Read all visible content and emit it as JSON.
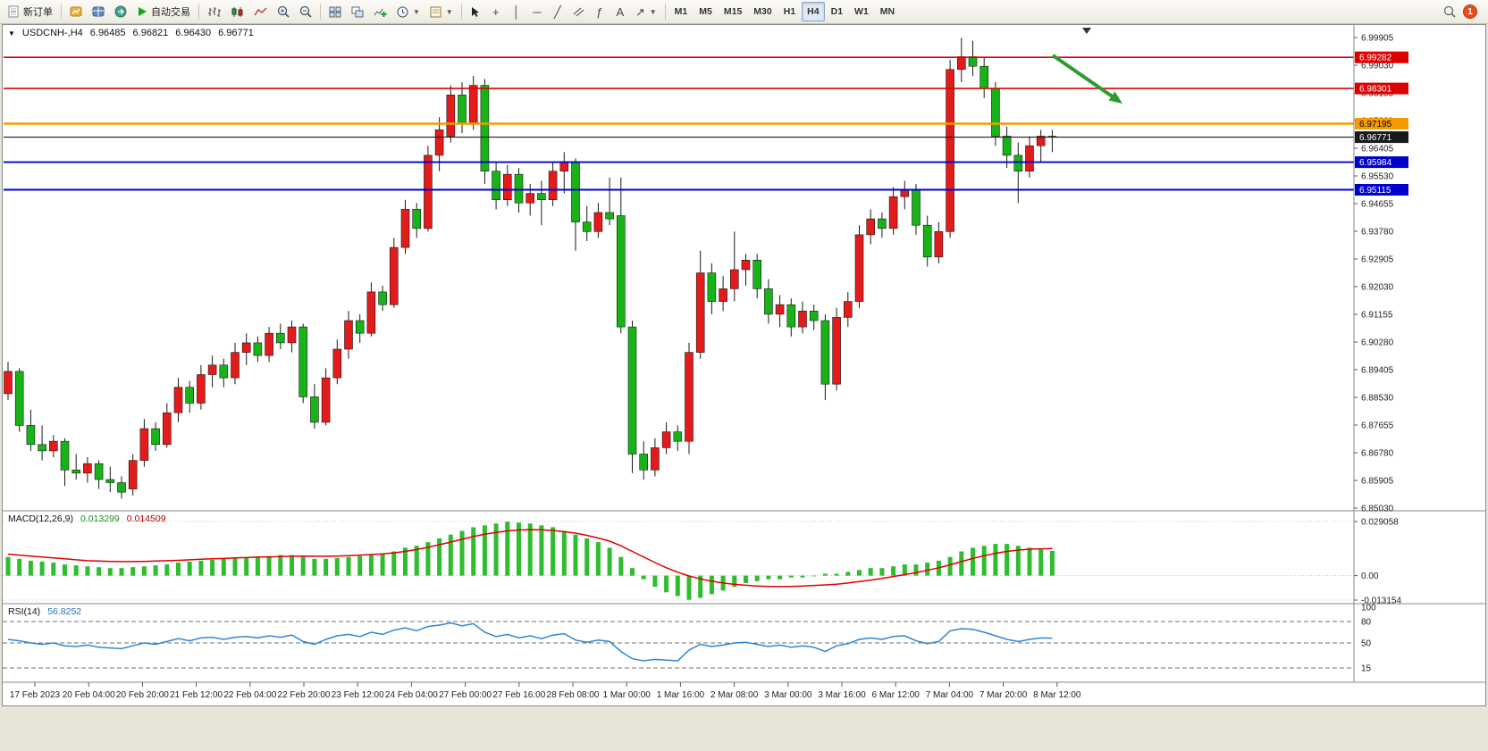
{
  "toolbar": {
    "new_order_label": "新订单",
    "autotrade_label": "自动交易",
    "timeframes": [
      "M1",
      "M5",
      "M15",
      "M30",
      "H1",
      "H4",
      "D1",
      "W1",
      "MN"
    ],
    "active_timeframe": "H4",
    "notification_badge": "1"
  },
  "chart": {
    "title_symbol": "USDCNH-,H4",
    "ohlc": {
      "open": "6.96485",
      "high": "6.96821",
      "low": "6.96430",
      "close": "6.96771"
    },
    "price_axis": [
      "6.99905",
      "6.99030",
      "6.98155",
      "6.97280",
      "6.96405",
      "6.95530",
      "6.94655",
      "6.93780",
      "6.92905",
      "6.92030",
      "6.91155",
      "6.90280",
      "6.89405",
      "6.88530",
      "6.87655",
      "6.86780",
      "6.85905",
      "6.85030"
    ],
    "hlines": [
      {
        "price": "6.99282",
        "value": 6.99282,
        "color": "#dd0000",
        "w": 1.6,
        "text": "#ffffff"
      },
      {
        "price": "6.98301",
        "value": 6.98301,
        "color": "#dd0000",
        "w": 1.6,
        "text": "#ffffff"
      },
      {
        "price": "6.97195",
        "value": 6.97195,
        "color": "#f59a00",
        "w": 2.4,
        "text": "#000000"
      },
      {
        "price": "6.96771",
        "value": 6.96771,
        "color": "#1a1a1a",
        "w": 1.1,
        "text": "#ffffff"
      },
      {
        "price": "6.95984",
        "value": 6.95984,
        "color": "#0000cc",
        "w": 1.9,
        "text": "#ffffff"
      },
      {
        "price": "6.95115",
        "value": 6.95115,
        "color": "#0000cc",
        "w": 1.9,
        "text": "#ffffff"
      }
    ],
    "time_axis": [
      "17 Feb 2023",
      "20 Feb 04:00",
      "20 Feb 20:00",
      "21 Feb 12:00",
      "22 Feb 04:00",
      "22 Feb 20:00",
      "23 Feb 12:00",
      "24 Feb 04:00",
      "27 Feb 00:00",
      "27 Feb 16:00",
      "28 Feb 08:00",
      "1 Mar 00:00",
      "1 Mar 16:00",
      "2 Mar 08:00",
      "3 Mar 00:00",
      "3 Mar 16:00",
      "6 Mar 12:00",
      "7 Mar 04:00",
      "7 Mar 20:00",
      "8 Mar 12:00"
    ],
    "arrow_color": "#2e9b2e"
  },
  "macd": {
    "label": "MACD(12,26,9)",
    "value_main": "0.013299",
    "value_signal": "0.014509",
    "axis": [
      "0.029058",
      "0.00",
      "-0.013154"
    ],
    "axis_values": [
      0.029058,
      0,
      -0.013154
    ]
  },
  "rsi": {
    "label": "RSI(14)",
    "value": "56.8252",
    "axis": [
      "100",
      "80",
      "50",
      "15"
    ],
    "axis_values": [
      100,
      80,
      50,
      15
    ]
  },
  "chart_data": {
    "type": "candlestick",
    "symbol": "USDCNH",
    "timeframe": "H4",
    "ylim": [
      6.8503,
      6.99905
    ],
    "up_color": "#e31b1b",
    "down_color": "#17b317",
    "candles": [
      [
        6.887,
        6.897,
        6.885,
        6.894
      ],
      [
        6.894,
        6.895,
        6.875,
        6.877
      ],
      [
        6.877,
        6.882,
        6.869,
        6.871
      ],
      [
        6.871,
        6.877,
        6.866,
        6.869
      ],
      [
        6.869,
        6.874,
        6.867,
        6.872
      ],
      [
        6.872,
        6.873,
        6.858,
        6.863
      ],
      [
        6.863,
        6.868,
        6.86,
        6.862
      ],
      [
        6.862,
        6.867,
        6.859,
        6.865
      ],
      [
        6.865,
        6.866,
        6.857,
        6.86
      ],
      [
        6.86,
        6.864,
        6.856,
        6.859
      ],
      [
        6.859,
        6.861,
        6.854,
        6.856
      ],
      [
        6.857,
        6.868,
        6.855,
        6.866
      ],
      [
        6.866,
        6.879,
        6.864,
        6.876
      ],
      [
        6.876,
        6.878,
        6.869,
        6.871
      ],
      [
        6.871,
        6.884,
        6.87,
        6.881
      ],
      [
        6.881,
        6.892,
        6.878,
        6.889
      ],
      [
        6.889,
        6.891,
        6.881,
        6.884
      ],
      [
        6.884,
        6.896,
        6.882,
        6.893
      ],
      [
        6.893,
        6.899,
        6.889,
        6.896
      ],
      [
        6.896,
        6.898,
        6.889,
        6.892
      ],
      [
        6.892,
        6.903,
        6.89,
        6.9
      ],
      [
        6.9,
        6.906,
        6.896,
        6.903
      ],
      [
        6.903,
        6.905,
        6.897,
        6.899
      ],
      [
        6.899,
        6.908,
        6.897,
        6.906
      ],
      [
        6.906,
        6.909,
        6.901,
        6.903
      ],
      [
        6.903,
        6.91,
        6.9,
        6.908
      ],
      [
        6.908,
        6.909,
        6.884,
        6.886
      ],
      [
        6.886,
        6.89,
        6.876,
        6.878
      ],
      [
        6.878,
        6.895,
        6.877,
        6.892
      ],
      [
        6.892,
        6.904,
        6.89,
        6.901
      ],
      [
        6.901,
        6.913,
        6.898,
        6.91
      ],
      [
        6.91,
        6.912,
        6.903,
        6.906
      ],
      [
        6.906,
        6.922,
        6.905,
        6.919
      ],
      [
        6.919,
        6.921,
        6.913,
        6.915
      ],
      [
        6.915,
        6.936,
        6.914,
        6.933
      ],
      [
        6.933,
        6.948,
        6.931,
        6.945
      ],
      [
        6.945,
        6.947,
        6.936,
        6.939
      ],
      [
        6.939,
        6.965,
        6.938,
        6.962
      ],
      [
        6.962,
        6.974,
        6.957,
        6.97
      ],
      [
        6.968,
        6.984,
        6.966,
        6.981
      ],
      [
        6.981,
        6.985,
        6.969,
        6.972
      ],
      [
        6.972,
        6.987,
        6.97,
        6.984
      ],
      [
        6.984,
        6.986,
        6.953,
        6.957
      ],
      [
        6.957,
        6.96,
        6.945,
        6.948
      ],
      [
        6.948,
        6.959,
        6.946,
        6.956
      ],
      [
        6.956,
        6.958,
        6.944,
        6.947
      ],
      [
        6.947,
        6.953,
        6.943,
        6.95
      ],
      [
        6.95,
        6.954,
        6.94,
        6.948
      ],
      [
        6.948,
        6.96,
        6.946,
        6.957
      ],
      [
        6.957,
        6.963,
        6.95,
        6.96
      ],
      [
        6.96,
        6.961,
        6.932,
        6.941
      ],
      [
        6.941,
        6.946,
        6.935,
        6.938
      ],
      [
        6.938,
        6.947,
        6.936,
        6.944
      ],
      [
        6.944,
        6.955,
        6.94,
        6.942
      ],
      [
        6.943,
        6.955,
        6.906,
        6.908
      ],
      [
        6.908,
        6.91,
        6.862,
        6.868
      ],
      [
        6.868,
        6.872,
        6.86,
        6.863
      ],
      [
        6.863,
        6.873,
        6.861,
        6.87
      ],
      [
        6.87,
        6.878,
        6.868,
        6.875
      ],
      [
        6.875,
        6.877,
        6.869,
        6.872
      ],
      [
        6.872,
        6.903,
        6.868,
        6.9
      ],
      [
        6.9,
        6.932,
        6.898,
        6.925
      ],
      [
        6.925,
        6.928,
        6.912,
        6.916
      ],
      [
        6.916,
        6.924,
        6.913,
        6.92
      ],
      [
        6.92,
        6.938,
        6.916,
        6.926
      ],
      [
        6.926,
        6.931,
        6.921,
        6.929
      ],
      [
        6.929,
        6.931,
        6.917,
        6.92
      ],
      [
        6.92,
        6.923,
        6.909,
        6.912
      ],
      [
        6.912,
        6.918,
        6.908,
        6.915
      ],
      [
        6.915,
        6.917,
        6.905,
        6.908
      ],
      [
        6.908,
        6.916,
        6.906,
        6.913
      ],
      [
        6.913,
        6.915,
        6.907,
        6.91
      ],
      [
        6.91,
        6.912,
        6.885,
        6.89
      ],
      [
        6.89,
        6.914,
        6.888,
        6.911
      ],
      [
        6.911,
        6.919,
        6.908,
        6.916
      ],
      [
        6.916,
        6.94,
        6.914,
        6.937
      ],
      [
        6.937,
        6.945,
        6.934,
        6.942
      ],
      [
        6.942,
        6.944,
        6.936,
        6.939
      ],
      [
        6.939,
        6.952,
        6.937,
        6.949
      ],
      [
        6.949,
        6.954,
        6.945,
        6.951
      ],
      [
        6.951,
        6.953,
        6.937,
        6.94
      ],
      [
        6.94,
        6.943,
        6.927,
        6.93
      ],
      [
        6.93,
        6.941,
        6.928,
        6.938
      ],
      [
        6.938,
        6.992,
        6.936,
        6.989
      ],
      [
        6.989,
        6.999,
        6.985,
        6.993
      ],
      [
        6.993,
        6.998,
        6.987,
        6.99
      ],
      [
        6.99,
        6.993,
        6.98,
        6.983
      ],
      [
        6.983,
        6.985,
        6.965,
        6.968
      ],
      [
        6.968,
        6.971,
        6.958,
        6.962
      ],
      [
        6.962,
        6.966,
        6.947,
        6.957
      ],
      [
        6.957,
        6.968,
        6.955,
        6.965
      ],
      [
        6.965,
        6.97,
        6.96,
        6.968
      ],
      [
        6.968,
        6.97,
        6.963,
        6.9677
      ]
    ],
    "macd_histogram": [
      0.01,
      0.009,
      0.008,
      0.0075,
      0.007,
      0.006,
      0.0055,
      0.005,
      0.0045,
      0.004,
      0.004,
      0.0045,
      0.005,
      0.0055,
      0.006,
      0.007,
      0.0075,
      0.008,
      0.0085,
      0.009,
      0.0095,
      0.01,
      0.01,
      0.0105,
      0.011,
      0.011,
      0.01,
      0.009,
      0.009,
      0.0095,
      0.01,
      0.0105,
      0.011,
      0.0115,
      0.013,
      0.015,
      0.016,
      0.018,
      0.02,
      0.022,
      0.024,
      0.026,
      0.027,
      0.028,
      0.029,
      0.0285,
      0.028,
      0.027,
      0.026,
      0.024,
      0.022,
      0.02,
      0.018,
      0.015,
      0.01,
      0.004,
      -0.002,
      -0.006,
      -0.009,
      -0.011,
      -0.013,
      -0.012,
      -0.01,
      -0.008,
      -0.006,
      -0.004,
      -0.003,
      -0.002,
      -0.002,
      -0.001,
      -0.001,
      0.0,
      0.001,
      0.001,
      0.002,
      0.003,
      0.004,
      0.004,
      0.005,
      0.006,
      0.006,
      0.007,
      0.008,
      0.01,
      0.013,
      0.015,
      0.016,
      0.017,
      0.017,
      0.016,
      0.015,
      0.014,
      0.013299
    ],
    "macd_signal": [
      0.0115,
      0.011,
      0.0105,
      0.01,
      0.0095,
      0.009,
      0.0085,
      0.008,
      0.0078,
      0.0076,
      0.0075,
      0.0075,
      0.0076,
      0.0078,
      0.008,
      0.0082,
      0.0085,
      0.0088,
      0.009,
      0.0092,
      0.0095,
      0.0097,
      0.01,
      0.01,
      0.0102,
      0.0104,
      0.0105,
      0.0104,
      0.0104,
      0.0105,
      0.0107,
      0.011,
      0.0113,
      0.0117,
      0.0122,
      0.013,
      0.014,
      0.0152,
      0.0166,
      0.018,
      0.0195,
      0.021,
      0.0222,
      0.0232,
      0.024,
      0.0245,
      0.0247,
      0.0246,
      0.0242,
      0.0236,
      0.0228,
      0.0216,
      0.0202,
      0.0185,
      0.016,
      0.013,
      0.01,
      0.007,
      0.0042,
      0.0018,
      -0.0002,
      -0.0018,
      -0.003,
      -0.004,
      -0.0047,
      -0.0052,
      -0.0056,
      -0.0058,
      -0.0059,
      -0.0058,
      -0.0056,
      -0.0053,
      -0.005,
      -0.0046,
      -0.004,
      -0.0032,
      -0.0024,
      -0.0015,
      -0.0005,
      0.0005,
      0.0016,
      0.0028,
      0.0042,
      0.0058,
      0.0075,
      0.0092,
      0.0107,
      0.012,
      0.013,
      0.0137,
      0.0142,
      0.0144,
      0.014509
    ],
    "rsi": [
      55,
      53,
      50,
      48,
      50,
      46,
      45,
      47,
      44,
      43,
      42,
      46,
      50,
      48,
      52,
      56,
      53,
      57,
      58,
      55,
      58,
      59,
      57,
      60,
      58,
      61,
      52,
      48,
      55,
      60,
      62,
      59,
      65,
      62,
      68,
      71,
      67,
      73,
      75,
      78,
      74,
      77,
      65,
      59,
      62,
      57,
      60,
      56,
      61,
      63,
      54,
      51,
      54,
      52,
      38,
      28,
      25,
      27,
      26,
      25,
      40,
      48,
      45,
      47,
      50,
      51,
      48,
      45,
      47,
      44,
      46,
      44,
      38,
      46,
      49,
      55,
      57,
      55,
      59,
      60,
      53,
      49,
      52,
      67,
      70,
      69,
      65,
      60,
      55,
      52,
      55,
      57,
      56.8
    ]
  }
}
